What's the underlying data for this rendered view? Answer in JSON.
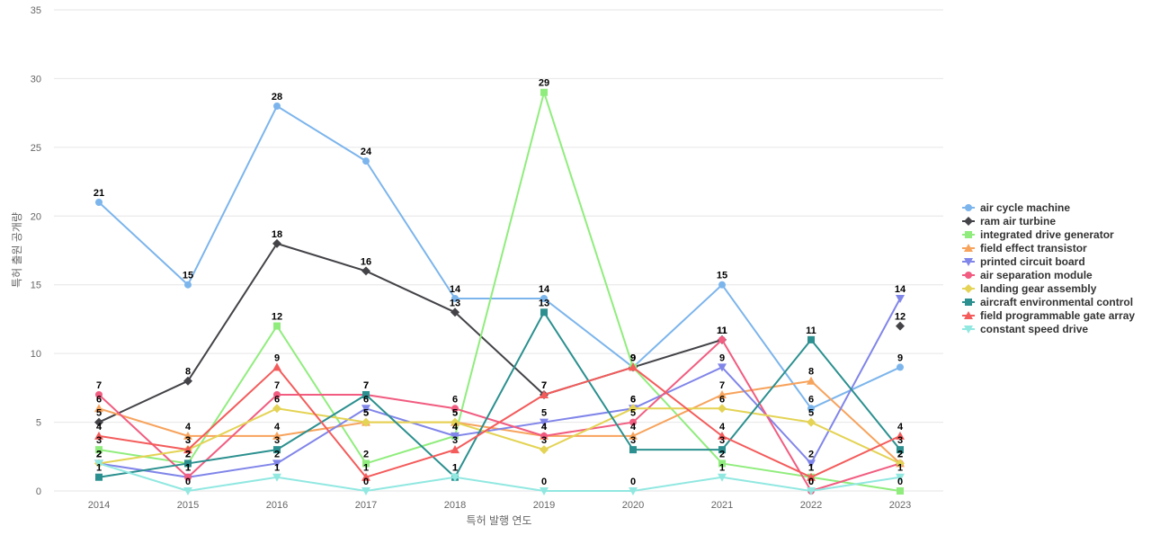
{
  "chart_data": {
    "type": "line",
    "title": "",
    "xlabel": "특허 발행 연도",
    "ylabel": "특허 출원 공개량",
    "x": [
      "2014",
      "2015",
      "2016",
      "2017",
      "2018",
      "2019",
      "2020",
      "2021",
      "2022",
      "2023"
    ],
    "ylim": [
      0,
      35
    ],
    "yticks": [
      0,
      5,
      10,
      15,
      20,
      25,
      30,
      35
    ],
    "grid": true,
    "legend_position": "right",
    "series": [
      {
        "name": "air cycle machine",
        "color": "#7cb5ec",
        "marker": "circle",
        "values": [
          21,
          15,
          28,
          24,
          14,
          14,
          9,
          15,
          6,
          9
        ]
      },
      {
        "name": "ram air turbine",
        "color": "#434348",
        "marker": "diamond",
        "values": [
          5,
          8,
          18,
          16,
          13,
          7,
          9,
          11,
          null,
          12
        ],
        "gap_after": [
          7,
          8
        ]
      },
      {
        "name": "integrated drive generator",
        "color": "#90ed7d",
        "marker": "square",
        "values": [
          3,
          2,
          12,
          2,
          4,
          29,
          9,
          2,
          1,
          0
        ]
      },
      {
        "name": "field effect transistor",
        "color": "#f7a35c",
        "marker": "triangle",
        "values": [
          6,
          4,
          4,
          5,
          5,
          4,
          4,
          7,
          8,
          2
        ]
      },
      {
        "name": "printed circuit board",
        "color": "#8085e9",
        "marker": "triangle-down",
        "values": [
          2,
          1,
          2,
          6,
          4,
          5,
          6,
          9,
          2,
          14
        ]
      },
      {
        "name": "air separation module",
        "color": "#f15c80",
        "marker": "circle",
        "values": [
          7,
          1,
          7,
          7,
          6,
          4,
          5,
          11,
          0,
          2
        ]
      },
      {
        "name": "landing gear assembly",
        "color": "#e4d354",
        "marker": "diamond",
        "values": [
          2,
          3,
          6,
          5,
          5,
          3,
          6,
          6,
          5,
          2
        ]
      },
      {
        "name": "aircraft environmental control",
        "color": "#2b908f",
        "marker": "square",
        "values": [
          1,
          2,
          3,
          7,
          1,
          13,
          3,
          3,
          11,
          3
        ]
      },
      {
        "name": "field programmable gate array",
        "color": "#f45b5b",
        "marker": "triangle",
        "values": [
          4,
          3,
          9,
          1,
          3,
          7,
          9,
          4,
          1,
          4
        ]
      },
      {
        "name": "constant speed drive",
        "color": "#91e8e1",
        "marker": "triangle-down",
        "values": [
          2,
          0,
          1,
          0,
          1,
          0,
          0,
          1,
          0,
          1
        ]
      }
    ]
  }
}
